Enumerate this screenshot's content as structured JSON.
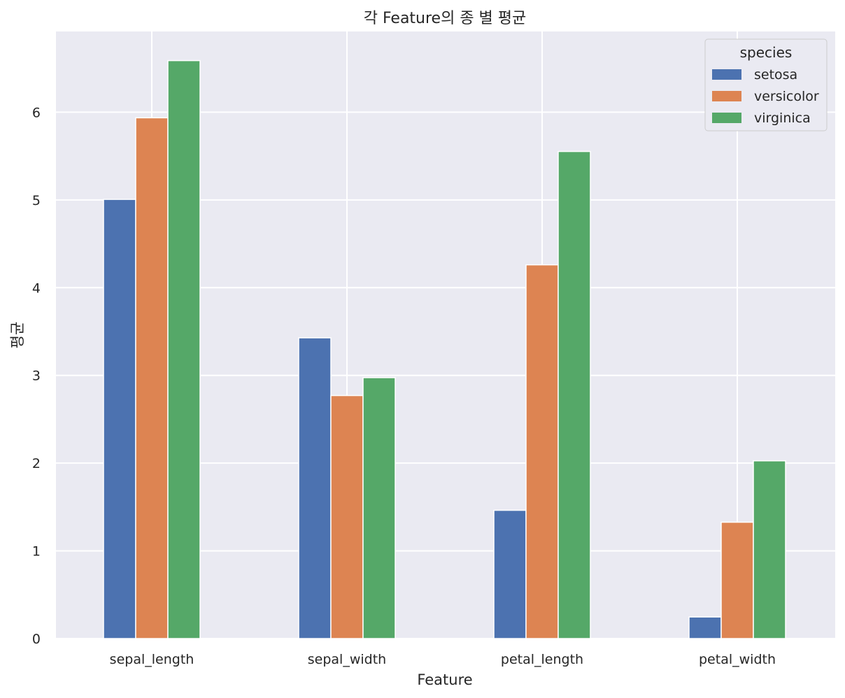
{
  "chart_data": {
    "type": "bar",
    "title": "각 Feature의 종 별 평균",
    "xlabel": "Feature",
    "ylabel": "평균",
    "categories": [
      "sepal_length",
      "sepal_width",
      "petal_length",
      "petal_width"
    ],
    "series": [
      {
        "name": "setosa",
        "color": "#4c72b0",
        "values": [
          5.006,
          3.428,
          1.462,
          0.246
        ]
      },
      {
        "name": "versicolor",
        "color": "#dd8452",
        "values": [
          5.936,
          2.77,
          4.26,
          1.326
        ]
      },
      {
        "name": "virginica",
        "color": "#55a868",
        "values": [
          6.588,
          2.974,
          5.552,
          2.026
        ]
      }
    ],
    "ylim": [
      0,
      6.92
    ],
    "yticks": [
      0,
      1,
      2,
      3,
      4,
      5,
      6
    ],
    "grid": true,
    "legend": {
      "title": "species",
      "placement": "top-right"
    },
    "background": "#eaeaf2"
  }
}
